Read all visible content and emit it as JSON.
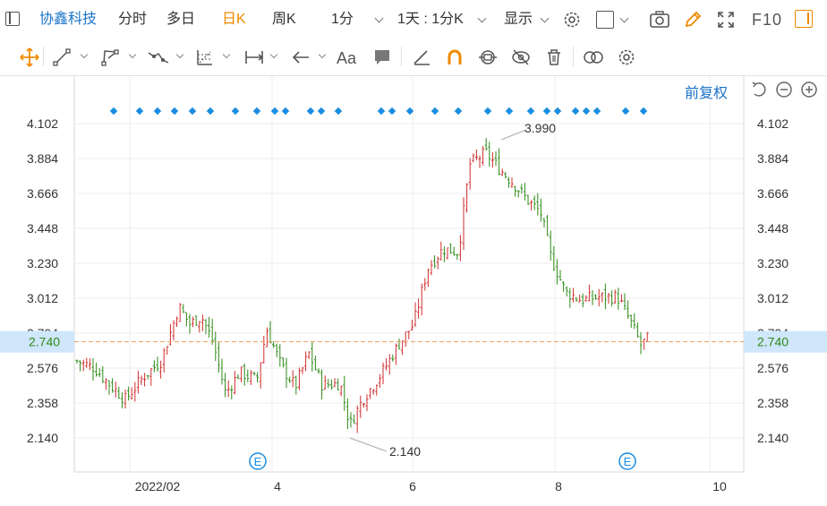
{
  "header": {
    "stock_name": "协鑫科技",
    "tabs": [
      "分时",
      "多日",
      "日K",
      "周K",
      "1分"
    ],
    "active_tab": "日K",
    "interval": "1天 : 1分K",
    "display": "显示",
    "f10": "F10"
  },
  "chart_toolbar": {
    "icons": [
      "move-icon",
      "line-icon",
      "polyline-icon",
      "wave-icon",
      "fib-icon",
      "measure-icon",
      "arrow-icon",
      "text-icon",
      "comment-icon",
      "ruler-icon",
      "magnet-icon",
      "lock-icon",
      "hide-icon",
      "delete-icon",
      "compare-icon",
      "settings-icon"
    ],
    "text_tool": "Aa",
    "adjust": "前复权"
  },
  "chart_data": {
    "type": "ohlc",
    "y_ticks": [
      "4.102",
      "3.884",
      "3.666",
      "3.448",
      "3.230",
      "3.012",
      "2.794",
      "2.576",
      "2.358",
      "2.140"
    ],
    "ylim": [
      2.03,
      4.2
    ],
    "x_ticks": [
      "2022/02",
      "4",
      "6",
      "8",
      "10"
    ],
    "current_price": "2.740",
    "high_label": "3.990",
    "low_label": "2.140",
    "events": [
      "E",
      "E"
    ],
    "colors": {
      "up": "#d12c2c",
      "down": "#2e8b17",
      "current_line": "#e8a060",
      "current_bg": "#cfe6fb",
      "marker": "#1a8de0"
    }
  }
}
